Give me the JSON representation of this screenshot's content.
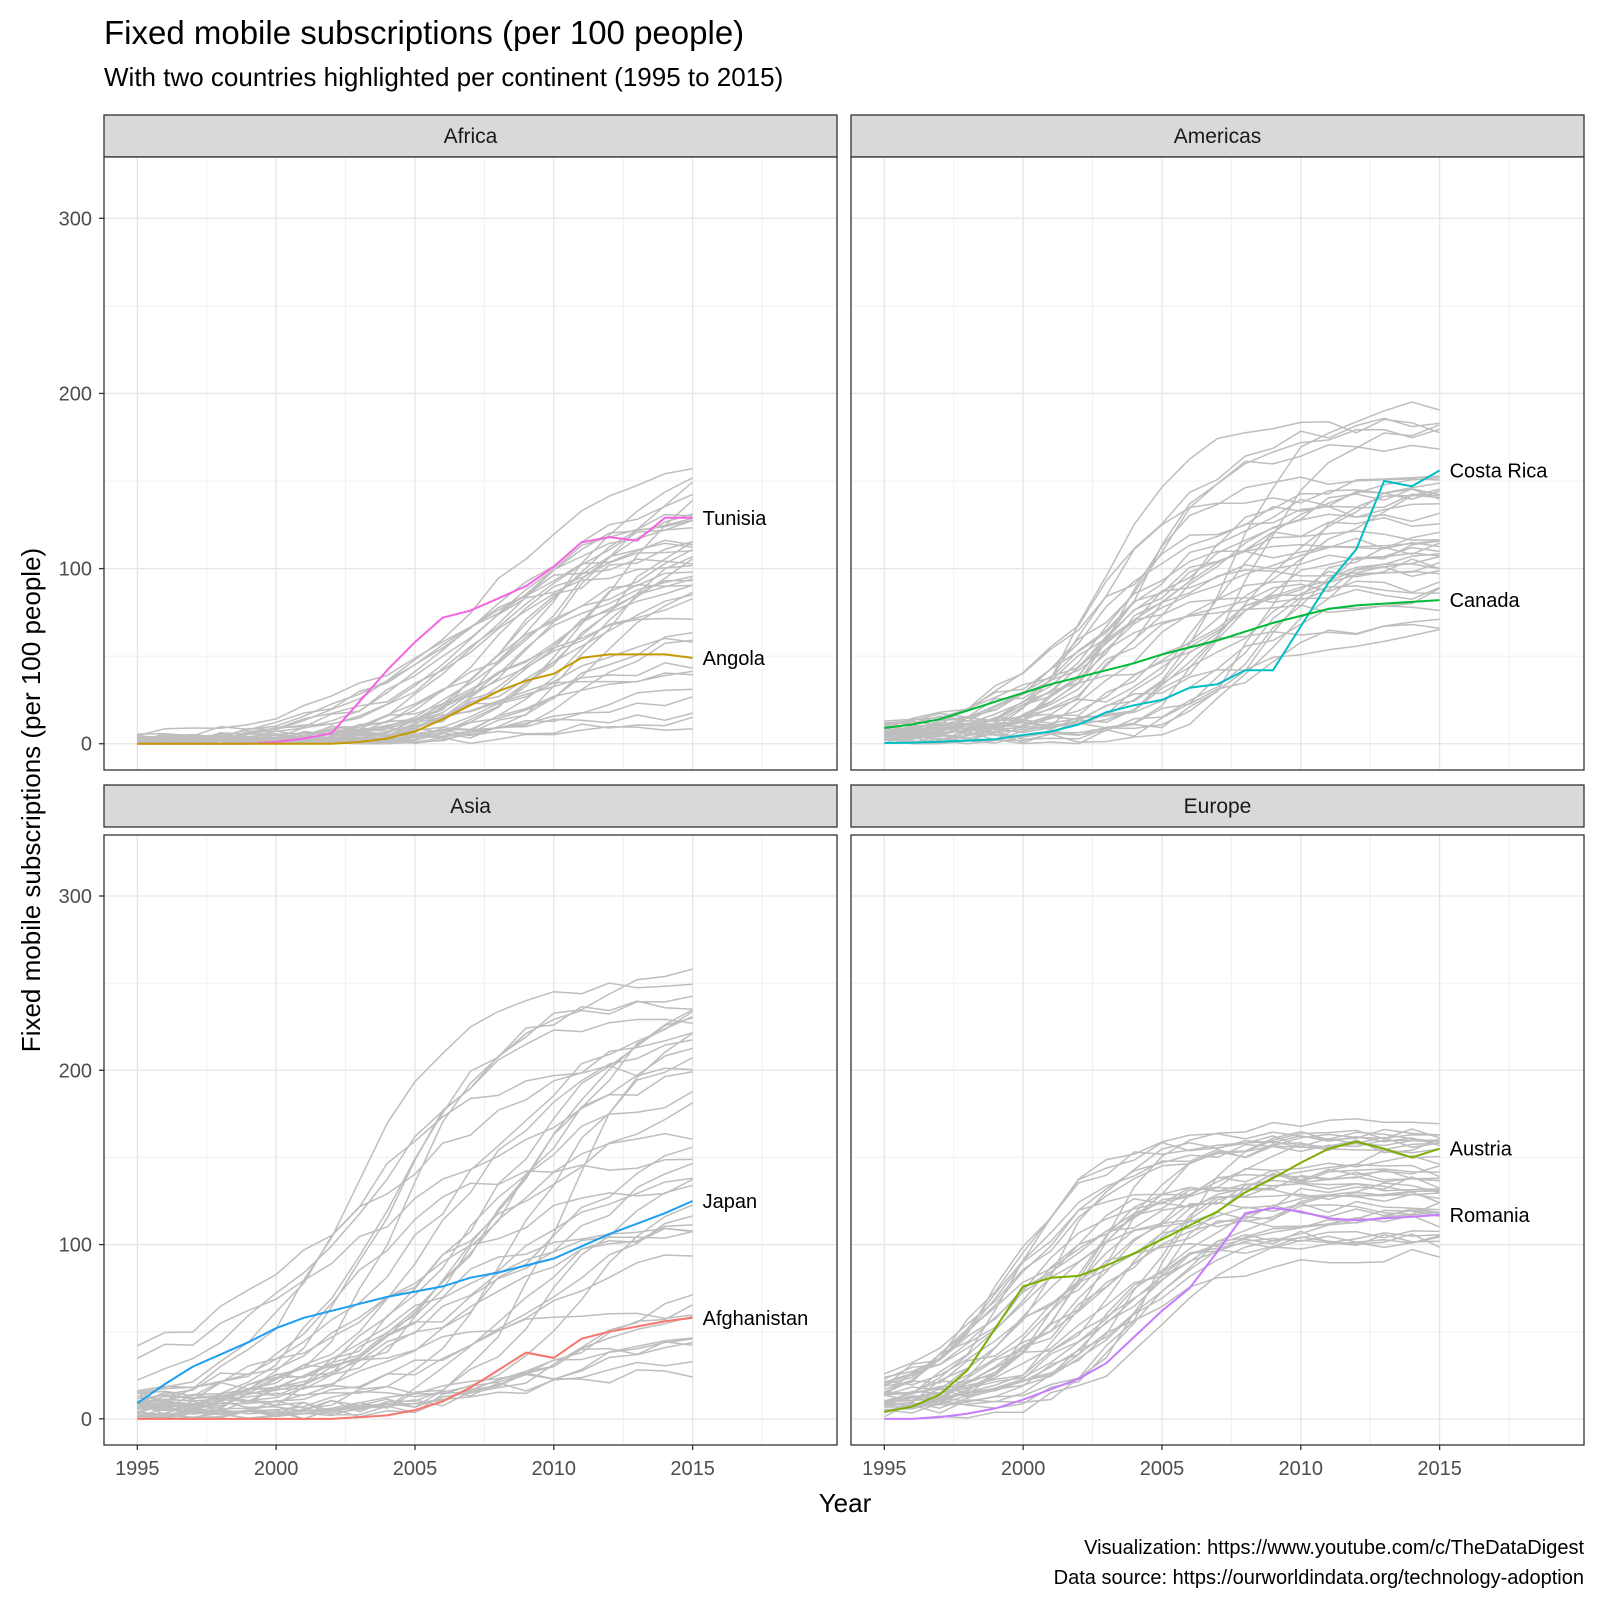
{
  "title": "Fixed mobile subscriptions (per 100 people)",
  "subtitle": "With two countries highlighted per continent (1995 to 2015)",
  "xlabel": "Year",
  "ylabel": "Fixed mobile subscriptions (per 100 people)",
  "caption_line1": "Visualization: https://www.youtube.com/c/TheDataDigest",
  "caption_line2": "Data source: https://ourworldindata.org/technology-adoption",
  "chart_data": {
    "type": "line",
    "facets": [
      "Africa",
      "Americas",
      "Asia",
      "Europe"
    ],
    "x_ticks": [
      "1995",
      "2000",
      "2005",
      "2010",
      "2015"
    ],
    "y_ticks": [
      "0",
      "100",
      "200",
      "300"
    ],
    "xlim": [
      1993.8,
      2020.2
    ],
    "ylim": [
      -15,
      335
    ],
    "background_color": "#bebebe",
    "panels": [
      {
        "facet": "Africa",
        "highlighted": [
          {
            "name": "Tunisia",
            "color": "#f564e3",
            "x": [
              1995,
              1996,
              1997,
              1998,
              1999,
              2000,
              2001,
              2002,
              2003,
              2004,
              2005,
              2006,
              2007,
              2008,
              2009,
              2010,
              2011,
              2012,
              2013,
              2014,
              2015
            ],
            "values": [
              0,
              0,
              0,
              0,
              0,
              1,
              3,
              6,
              24,
              42,
              58,
              72,
              76,
              83,
              90,
              101,
              115,
              118,
              116,
              129,
              129
            ]
          },
          {
            "name": "Angola",
            "color": "#c49a00",
            "x": [
              1995,
              1996,
              1997,
              1998,
              1999,
              2000,
              2001,
              2002,
              2003,
              2004,
              2005,
              2006,
              2007,
              2008,
              2009,
              2010,
              2011,
              2012,
              2013,
              2014,
              2015
            ],
            "values": [
              0,
              0,
              0,
              0,
              0,
              0,
              0,
              0,
              1,
              3,
              7,
              14,
              22,
              30,
              36,
              40,
              49,
              51,
              51,
              51,
              49
            ]
          }
        ]
      },
      {
        "facet": "Americas",
        "highlighted": [
          {
            "name": "Costa Rica",
            "color": "#00bfc4",
            "x": [
              1995,
              1996,
              1997,
              1998,
              1999,
              2000,
              2001,
              2002,
              2003,
              2004,
              2005,
              2006,
              2007,
              2008,
              2009,
              2010,
              2011,
              2012,
              2013,
              2014,
              2015
            ],
            "values": [
              0.4,
              0.6,
              1.1,
              1.8,
              2.6,
              5,
              7,
              11,
              18,
              22,
              25,
              32,
              34,
              42,
              42,
              67,
              92,
              111,
              150,
              147,
              156
            ]
          },
          {
            "name": "Canada",
            "color": "#00ba38",
            "x": [
              1995,
              1996,
              1997,
              1998,
              1999,
              2000,
              2001,
              2002,
              2003,
              2004,
              2005,
              2006,
              2007,
              2008,
              2009,
              2010,
              2011,
              2012,
              2013,
              2014,
              2015
            ],
            "values": [
              9,
              11,
              14,
              19,
              24,
              29,
              34,
              38,
              42,
              46,
              51,
              55,
              59,
              64,
              69,
              73,
              77,
              79,
              80,
              81,
              82
            ]
          }
        ]
      },
      {
        "facet": "Asia",
        "highlighted": [
          {
            "name": "Japan",
            "color": "#1e9ef0",
            "x": [
              1995,
              1996,
              1997,
              1998,
              1999,
              2000,
              2001,
              2002,
              2003,
              2004,
              2005,
              2006,
              2007,
              2008,
              2009,
              2010,
              2011,
              2012,
              2013,
              2014,
              2015
            ],
            "values": [
              9,
              20,
              30,
              37,
              44,
              52,
              58,
              62,
              66,
              70,
              73,
              76,
              81,
              84,
              88,
              92,
              99,
              106,
              112,
              118,
              125
            ]
          },
          {
            "name": "Afghanistan",
            "color": "#f8766d",
            "x": [
              1995,
              1996,
              1997,
              1998,
              1999,
              2000,
              2001,
              2002,
              2003,
              2004,
              2005,
              2006,
              2007,
              2008,
              2009,
              2010,
              2011,
              2012,
              2013,
              2014,
              2015
            ],
            "values": [
              0,
              0,
              0,
              0,
              0,
              0,
              0,
              0,
              1,
              2,
              5,
              10,
              18,
              28,
              38,
              35,
              46,
              50,
              53,
              56,
              58
            ]
          }
        ]
      },
      {
        "facet": "Europe",
        "highlighted": [
          {
            "name": "Austria",
            "color": "#7cae00",
            "x": [
              1995,
              1996,
              1997,
              1998,
              1999,
              2000,
              2001,
              2002,
              2003,
              2004,
              2005,
              2006,
              2007,
              2008,
              2009,
              2010,
              2011,
              2012,
              2013,
              2014,
              2015
            ],
            "values": [
              4,
              7,
              14,
              28,
              52,
              76,
              81,
              82,
              88,
              95,
              103,
              111,
              119,
              130,
              138,
              147,
              155,
              159,
              155,
              150,
              155
            ]
          },
          {
            "name": "Romania",
            "color": "#c77cff",
            "x": [
              1995,
              1996,
              1997,
              1998,
              1999,
              2000,
              2001,
              2002,
              2003,
              2004,
              2005,
              2006,
              2007,
              2008,
              2009,
              2010,
              2011,
              2012,
              2013,
              2014,
              2015
            ],
            "values": [
              0,
              0,
              1,
              3,
              6,
              11,
              17,
              23,
              32,
              47,
              62,
              75,
              96,
              118,
              121,
              119,
              115,
              114,
              115,
              116,
              117
            ]
          }
        ]
      }
    ]
  }
}
